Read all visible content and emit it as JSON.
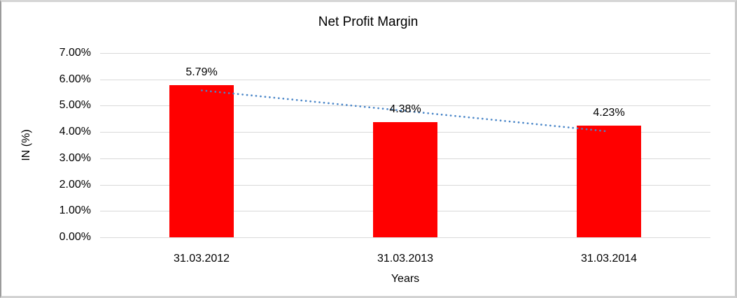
{
  "chart_data": {
    "type": "bar",
    "title": "Net Profit Margin",
    "xlabel": "Years",
    "ylabel": "IN (%)",
    "categories": [
      "31.03.2012",
      "31.03.2013",
      "31.03.2014"
    ],
    "values": [
      5.79,
      4.38,
      4.23
    ],
    "value_labels": [
      "5.79%",
      "4.38%",
      "4.23%"
    ],
    "yticks": [
      {
        "label": "0.00%",
        "value": 0
      },
      {
        "label": "1.00%",
        "value": 1
      },
      {
        "label": "2.00%",
        "value": 2
      },
      {
        "label": "3.00%",
        "value": 3
      },
      {
        "label": "4.00%",
        "value": 4
      },
      {
        "label": "5.00%",
        "value": 5
      },
      {
        "label": "6.00%",
        "value": 6
      },
      {
        "label": "7.00%",
        "value": 7
      }
    ],
    "ylim": [
      0,
      7
    ],
    "grid": true,
    "legend": false,
    "trendline": {
      "type": "linear",
      "style": "dotted"
    },
    "colors": {
      "bar": "#FF0000",
      "trendline": "#4A86C8",
      "gridline": "#D9D9D9",
      "text": "#000000"
    }
  }
}
